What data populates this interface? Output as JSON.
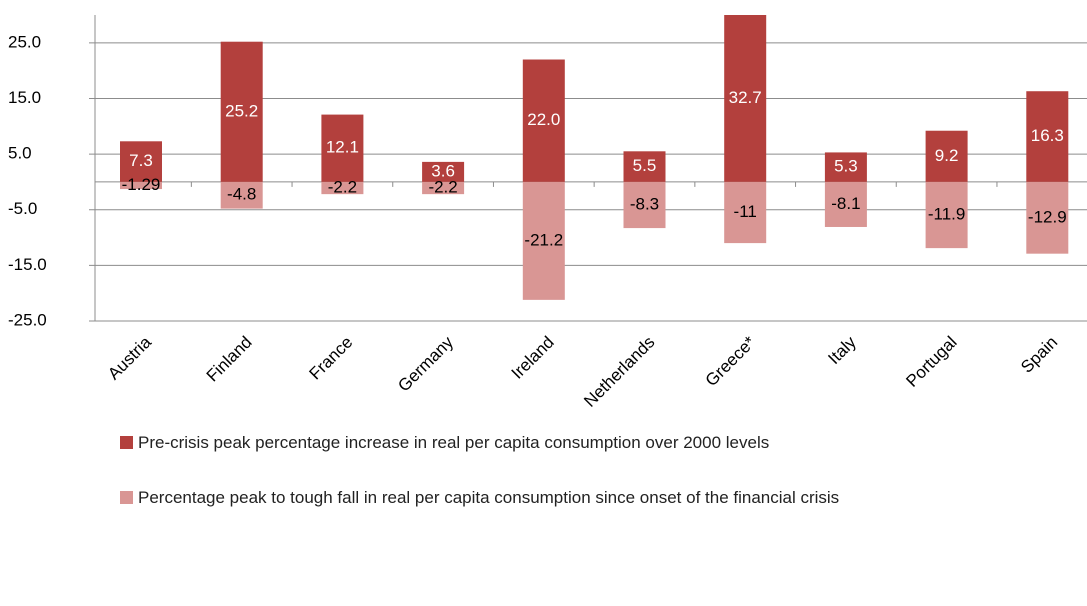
{
  "chart_data": {
    "type": "bar",
    "categories": [
      "Austria",
      "Finland",
      "France",
      "Germany",
      "Ireland",
      "Netherlands",
      "Greece*",
      "Italy",
      "Portugal",
      "Spain"
    ],
    "series": [
      {
        "name": "Pre-crisis peak percentage increase in real per capita consumption over 2000 levels",
        "color": "#b3403d",
        "values": [
          7.3,
          25.2,
          12.1,
          3.6,
          22.0,
          5.5,
          32.7,
          5.3,
          9.2,
          16.3
        ],
        "value_labels": [
          "7.3",
          "25.2",
          "12.1",
          "3.6",
          "22.0",
          "5.5",
          "32.7",
          "5.3",
          "9.2",
          "16.3"
        ]
      },
      {
        "name": "Percentage peak to tough fall in real per capita consumption since onset of the financial crisis",
        "color": "#d99694",
        "values": [
          -1.29,
          -4.8,
          -2.2,
          -2.2,
          -21.2,
          -8.3,
          -11,
          -8.1,
          -11.9,
          -12.9
        ]
      }
    ],
    "ylim": [
      -25,
      30
    ],
    "yticks": [
      {
        "value": -25,
        "label": "-25.0"
      },
      {
        "value": -15,
        "label": "-15.0"
      },
      {
        "value": -5,
        "label": "-5.0"
      },
      {
        "value": 5,
        "label": "5.0"
      },
      {
        "value": 15,
        "label": "15.0"
      },
      {
        "value": 25,
        "label": "25.0"
      }
    ],
    "grid": true
  }
}
